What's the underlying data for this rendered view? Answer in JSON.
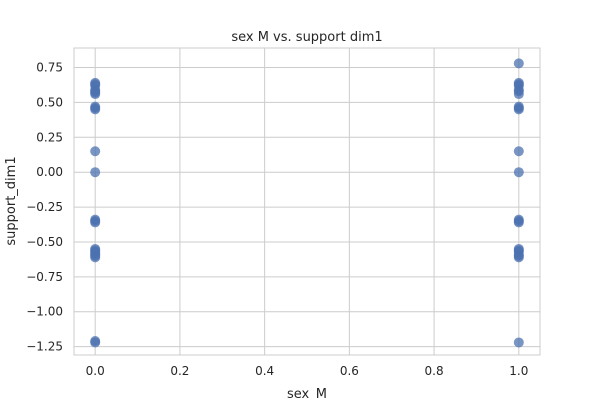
{
  "chart_data": {
    "type": "scatter",
    "title": "sex M vs. support dim1",
    "xlabel": "sex_M",
    "ylabel": "support_dim1",
    "xlim": [
      -0.05,
      1.05
    ],
    "ylim": [
      -1.31,
      0.89
    ],
    "xticks": [
      0.0,
      0.2,
      0.4,
      0.6,
      0.8,
      1.0
    ],
    "xtick_labels": [
      "0.0",
      "0.2",
      "0.4",
      "0.6",
      "0.8",
      "1.0"
    ],
    "yticks": [
      0.75,
      0.5,
      0.25,
      0.0,
      -0.25,
      -0.5,
      -0.75,
      -1.0,
      -1.25
    ],
    "ytick_labels": [
      "0.75",
      "0.50",
      "0.25",
      "0.00",
      "−0.25",
      "−0.50",
      "−0.75",
      "−1.00",
      "−1.25"
    ],
    "grid": true,
    "point_color": "#4c72b0",
    "series": [
      {
        "x": [
          0,
          0,
          0,
          0,
          0,
          0,
          0,
          0,
          0,
          0,
          0,
          0,
          0,
          0,
          0,
          0,
          0,
          0,
          0,
          0,
          0,
          0,
          0,
          0
        ],
        "y": [
          0.64,
          0.63,
          0.62,
          0.59,
          0.58,
          0.57,
          0.56,
          0.47,
          0.46,
          0.45,
          0.15,
          0.0,
          -0.34,
          -0.35,
          -0.36,
          -0.55,
          -0.56,
          -0.57,
          -0.58,
          -0.59,
          -0.6,
          -0.61,
          -1.21,
          -1.22
        ]
      },
      {
        "x": [
          1,
          1,
          1,
          1,
          1,
          1,
          1,
          1,
          1,
          1,
          1,
          1,
          1,
          1,
          1,
          1,
          1,
          1,
          1,
          1,
          1,
          1
        ],
        "y": [
          0.78,
          0.64,
          0.63,
          0.62,
          0.59,
          0.58,
          0.56,
          0.47,
          0.46,
          0.45,
          0.15,
          0.0,
          -0.34,
          -0.35,
          -0.36,
          -0.55,
          -0.56,
          -0.57,
          -0.59,
          -0.6,
          -0.61,
          -1.22
        ]
      }
    ]
  }
}
